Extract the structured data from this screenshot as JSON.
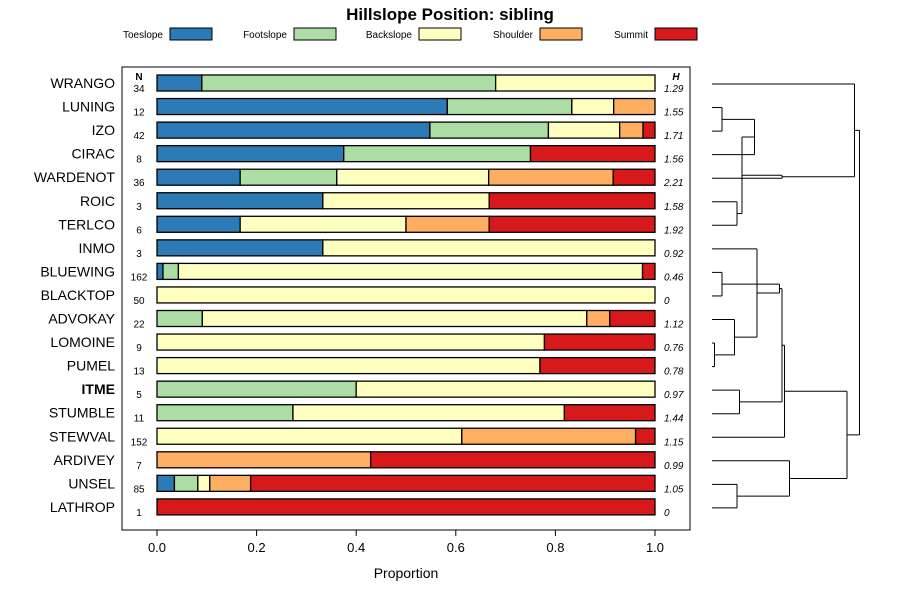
{
  "chart_data": {
    "type": "bar",
    "orientation": "horizontal",
    "stacked": true,
    "title": "Hillslope Position: sibling",
    "xlabel": "Proportion",
    "ylabel": "",
    "xlim": [
      0,
      1
    ],
    "xticks": [
      "0.0",
      "0.2",
      "0.4",
      "0.6",
      "0.8",
      "1.0"
    ],
    "n_header": "N",
    "h_header": "H",
    "legend": [
      {
        "name": "Toeslope",
        "color": "#2c7bb6"
      },
      {
        "name": "Footslope",
        "color": "#abdda4"
      },
      {
        "name": "Backslope",
        "color": "#ffffbf"
      },
      {
        "name": "Shoulder",
        "color": "#fdae61"
      },
      {
        "name": "Summit",
        "color": "#d7191c"
      }
    ],
    "rows": [
      {
        "label": "WRANGO",
        "n": "34",
        "h": "1.29",
        "values": [
          0.09,
          0.59,
          0.32,
          0,
          0
        ]
      },
      {
        "label": "LUNING",
        "n": "12",
        "h": "1.55",
        "values": [
          0.583,
          0.25,
          0.084,
          0.083,
          0
        ]
      },
      {
        "label": "IZO",
        "n": "42",
        "h": "1.71",
        "values": [
          0.548,
          0.238,
          0.143,
          0.047,
          0.024
        ]
      },
      {
        "label": "CIRAC",
        "n": "8",
        "h": "1.56",
        "values": [
          0.375,
          0.375,
          0,
          0,
          0.25
        ]
      },
      {
        "label": "WARDENOT",
        "n": "36",
        "h": "2.21",
        "values": [
          0.167,
          0.194,
          0.305,
          0.25,
          0.084
        ]
      },
      {
        "label": "ROIC",
        "n": "3",
        "h": "1.58",
        "values": [
          0.333,
          0,
          0.334,
          0,
          0.333
        ]
      },
      {
        "label": "TERLCO",
        "n": "6",
        "h": "1.92",
        "values": [
          0.167,
          0,
          0.333,
          0.167,
          0.333
        ]
      },
      {
        "label": "INMO",
        "n": "3",
        "h": "0.92",
        "values": [
          0.333,
          0,
          0.667,
          0,
          0
        ]
      },
      {
        "label": "BLUEWING",
        "n": "162",
        "h": "0.46",
        "values": [
          0.012,
          0.031,
          0.932,
          0,
          0.025
        ]
      },
      {
        "label": "BLACKTOP",
        "n": "50",
        "h": "0",
        "values": [
          0,
          0,
          1,
          0,
          0
        ]
      },
      {
        "label": "ADVOKAY",
        "n": "22",
        "h": "1.12",
        "values": [
          0,
          0.091,
          0.772,
          0.046,
          0.091
        ]
      },
      {
        "label": "LOMOINE",
        "n": "9",
        "h": "0.76",
        "values": [
          0,
          0,
          0.778,
          0,
          0.222
        ]
      },
      {
        "label": "PUMEL",
        "n": "13",
        "h": "0.78",
        "values": [
          0,
          0,
          0.769,
          0,
          0.231
        ]
      },
      {
        "label": "ITME",
        "n": "5",
        "h": "0.97",
        "values": [
          0,
          0.4,
          0.6,
          0,
          0
        ],
        "bold": true
      },
      {
        "label": "STUMBLE",
        "n": "11",
        "h": "1.44",
        "values": [
          0,
          0.273,
          0.545,
          0,
          0.182
        ]
      },
      {
        "label": "STEWVAL",
        "n": "152",
        "h": "1.15",
        "values": [
          0,
          0,
          0.612,
          0.349,
          0.039
        ]
      },
      {
        "label": "ARDIVEY",
        "n": "7",
        "h": "0.99",
        "values": [
          0,
          0,
          0,
          0.429,
          0.571
        ]
      },
      {
        "label": "UNSEL",
        "n": "85",
        "h": "1.05",
        "values": [
          0.035,
          0.047,
          0.024,
          0.082,
          0.812
        ]
      },
      {
        "label": "LATHROP",
        "n": "1",
        "h": "0",
        "values": [
          0,
          0,
          0,
          0,
          1
        ]
      }
    ],
    "dendrogram": {
      "leaf_order": [
        "WRANGO",
        "LUNING",
        "IZO",
        "CIRAC",
        "WARDENOT",
        "ROIC",
        "TERLCO",
        "INMO",
        "BLUEWING",
        "BLACKTOP",
        "ADVOKAY",
        "LOMOINE",
        "PUMEL",
        "ITME",
        "STUMBLE",
        "STEWVAL",
        "ARDIVEY",
        "UNSEL",
        "LATHROP"
      ],
      "merges": [
        [
          1,
          2,
          0.02
        ],
        [
          11,
          12,
          0.005
        ],
        [
          8,
          9,
          0.02
        ],
        [
          5,
          6,
          0.05
        ],
        [
          17,
          18,
          0.05
        ],
        [
          -1,
          3,
          0.085
        ],
        [
          13,
          14,
          0.055
        ],
        [
          -2,
          10,
          0.045
        ],
        [
          -6,
          -4,
          0.06
        ],
        [
          -8,
          7,
          0.09
        ],
        [
          -3,
          -10,
          0.135
        ],
        [
          -9,
          4,
          0.14
        ],
        [
          -11,
          -7,
          0.14
        ],
        [
          16,
          -5,
          0.155
        ],
        [
          -12,
          0,
          0.285
        ],
        [
          -13,
          15,
          0.145
        ],
        [
          -16,
          -14,
          0.27
        ],
        [
          -15,
          -17,
          0.295
        ]
      ]
    }
  }
}
